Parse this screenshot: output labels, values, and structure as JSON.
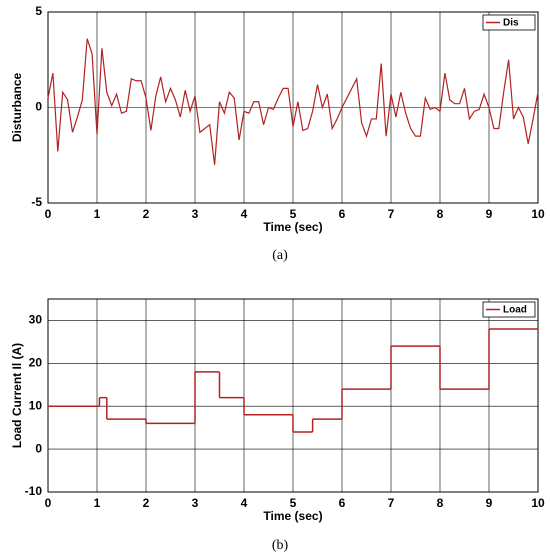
{
  "chart_data": [
    {
      "type": "line",
      "caption": "(a)",
      "xlabel": "Time (sec)",
      "ylabel": "Disturbance",
      "xlim": [
        0,
        10
      ],
      "xticks": [
        0,
        1,
        2,
        3,
        4,
        5,
        6,
        7,
        8,
        9,
        10
      ],
      "ylim": [
        -5,
        5
      ],
      "yticks": [
        -5,
        0,
        5
      ],
      "grid": true,
      "legend": "upper right",
      "series": [
        {
          "name": "Dis",
          "color": "#b22222",
          "x": [
            0,
            0.1,
            0.2,
            0.3,
            0.4,
            0.5,
            0.6,
            0.7,
            0.8,
            0.9,
            1,
            1.1,
            1.2,
            1.3,
            1.4,
            1.5,
            1.6,
            1.7,
            1.8,
            1.9,
            2,
            2.1,
            2.2,
            2.3,
            2.4,
            2.5,
            2.6,
            2.7,
            2.8,
            2.9,
            3,
            3.1,
            3.2,
            3.3,
            3.4,
            3.5,
            3.6,
            3.7,
            3.8,
            3.9,
            4,
            4.1,
            4.2,
            4.3,
            4.4,
            4.5,
            4.6,
            4.7,
            4.8,
            4.9,
            5,
            5.1,
            5.2,
            5.3,
            5.4,
            5.5,
            5.6,
            5.7,
            5.8,
            5.9,
            6,
            6.1,
            6.2,
            6.3,
            6.4,
            6.5,
            6.6,
            6.7,
            6.8,
            6.9,
            7,
            7.1,
            7.2,
            7.3,
            7.4,
            7.5,
            7.6,
            7.7,
            7.8,
            7.9,
            8,
            8.1,
            8.2,
            8.3,
            8.4,
            8.5,
            8.6,
            8.7,
            8.8,
            8.9,
            9,
            9.1,
            9.2,
            9.3,
            9.4,
            9.5,
            9.6,
            9.7,
            9.8,
            9.9,
            10
          ],
          "values": [
            0.5,
            1.8,
            -2.3,
            0.8,
            0.4,
            -1.3,
            -0.5,
            0.4,
            3.6,
            2.8,
            -1.4,
            3.1,
            0.8,
            0.1,
            0.7,
            -0.3,
            -0.2,
            1.5,
            1.4,
            1.4,
            0.5,
            -1.2,
            0.6,
            1.6,
            0.3,
            1.0,
            0.4,
            -0.5,
            0.9,
            -0.2,
            0.6,
            -1.3,
            -1.1,
            -0.9,
            -3.0,
            0.3,
            -0.3,
            0.8,
            0.5,
            -1.7,
            -0.2,
            -0.3,
            0.3,
            0.3,
            -0.9,
            0.0,
            -0.1,
            0.5,
            1.0,
            1.0,
            -1.0,
            0.3,
            -1.2,
            -1.1,
            -0.2,
            1.2,
            0.0,
            0.7,
            -1.1,
            -0.6,
            0.0,
            0.5,
            1.0,
            1.5,
            -0.8,
            -1.5,
            -0.6,
            -0.6,
            2.3,
            -1.5,
            0.7,
            -0.5,
            0.8,
            -0.3,
            -1.1,
            -1.5,
            -1.5,
            0.5,
            -0.1,
            0.0,
            -0.2,
            1.8,
            0.4,
            0.2,
            0.2,
            1.0,
            -0.6,
            -0.2,
            -0.1,
            0.7,
            0.0,
            -1.1,
            -1.1,
            0.8,
            2.5,
            -0.6,
            0.0,
            -0.5,
            -1.9,
            -0.6,
            0.8
          ]
        }
      ]
    },
    {
      "type": "line",
      "step": "post",
      "caption": "(b)",
      "xlabel": "Time (sec)",
      "ylabel": "Load Current Il (A)",
      "xlim": [
        0,
        10
      ],
      "xticks": [
        0,
        1,
        2,
        3,
        4,
        5,
        6,
        7,
        8,
        9,
        10
      ],
      "ylim": [
        -10,
        35
      ],
      "yticks": [
        -10,
        0,
        10,
        20,
        30
      ],
      "grid": true,
      "legend": "upper right",
      "series": [
        {
          "name": "Load",
          "color": "#b22222",
          "x": [
            0,
            1.05,
            1.2,
            2,
            3,
            3.5,
            4,
            5,
            5.4,
            6,
            7,
            8,
            9,
            10
          ],
          "values": [
            10,
            12,
            7,
            6,
            18,
            12,
            8,
            4,
            7,
            14,
            24,
            14,
            28,
            28
          ]
        }
      ]
    }
  ]
}
